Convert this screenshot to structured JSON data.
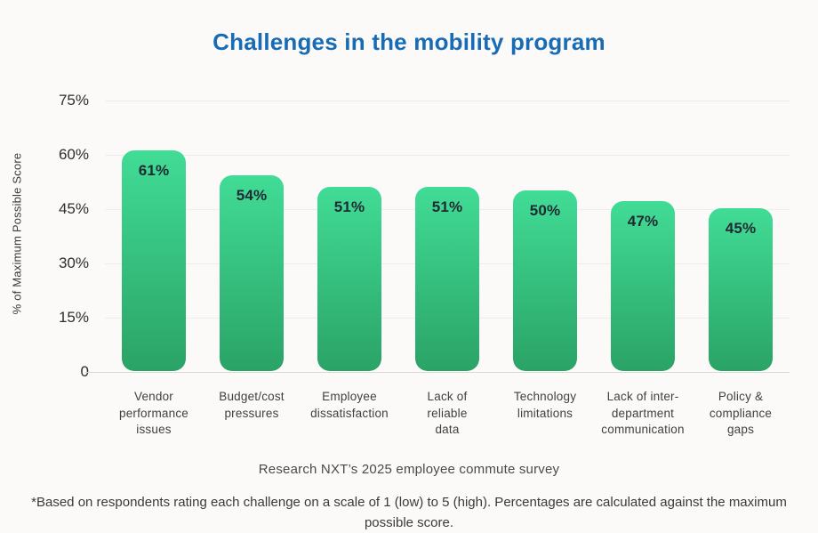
{
  "page": {
    "background": "#fbfaf8"
  },
  "chart_data": {
    "type": "bar",
    "title": "Challenges in the mobility program",
    "title_color": "#176cb5",
    "xlabel": "",
    "ylabel": "% of Maximum Possible Score",
    "ylim": [
      0,
      75
    ],
    "y_ticks": [
      {
        "value": 75,
        "label": "75%"
      },
      {
        "value": 60,
        "label": "60%"
      },
      {
        "value": 45,
        "label": "45%"
      },
      {
        "value": 30,
        "label": "30%"
      },
      {
        "value": 15,
        "label": "15%"
      },
      {
        "value": 0,
        "label": "0"
      }
    ],
    "grid": "horizontal",
    "legend": "none",
    "bar_color_top": "#41dc96",
    "bar_color_bottom": "#2aa366",
    "value_label_color": "#1f2a33",
    "categories": [
      "Vendor performance issues",
      "Budget/cost pressures",
      "Employee dissatisfaction",
      "Lack of reliable data",
      "Technology limitations",
      "Lack of inter-department communication",
      "Policy & compliance gaps"
    ],
    "category_label_lines": [
      [
        "Vendor",
        "performance",
        "issues"
      ],
      [
        "Budget/cost",
        "pressures"
      ],
      [
        "Employee",
        "dissatisfaction"
      ],
      [
        "Lack of",
        "reliable",
        "data"
      ],
      [
        "Technology",
        "limitations"
      ],
      [
        "Lack of inter-",
        "department",
        "communication"
      ],
      [
        "Policy &",
        "compliance",
        "gaps"
      ]
    ],
    "values": [
      61,
      54,
      51,
      51,
      50,
      47,
      45
    ],
    "value_labels": [
      "61%",
      "54%",
      "51%",
      "51%",
      "50%",
      "47%",
      "45%"
    ]
  },
  "caption": "Research NXT’s 2025 employee commute survey",
  "footnote": "*Based on respondents rating each challenge on a scale of 1 (low) to 5 (high). Percentages are calculated against the maximum possible score."
}
